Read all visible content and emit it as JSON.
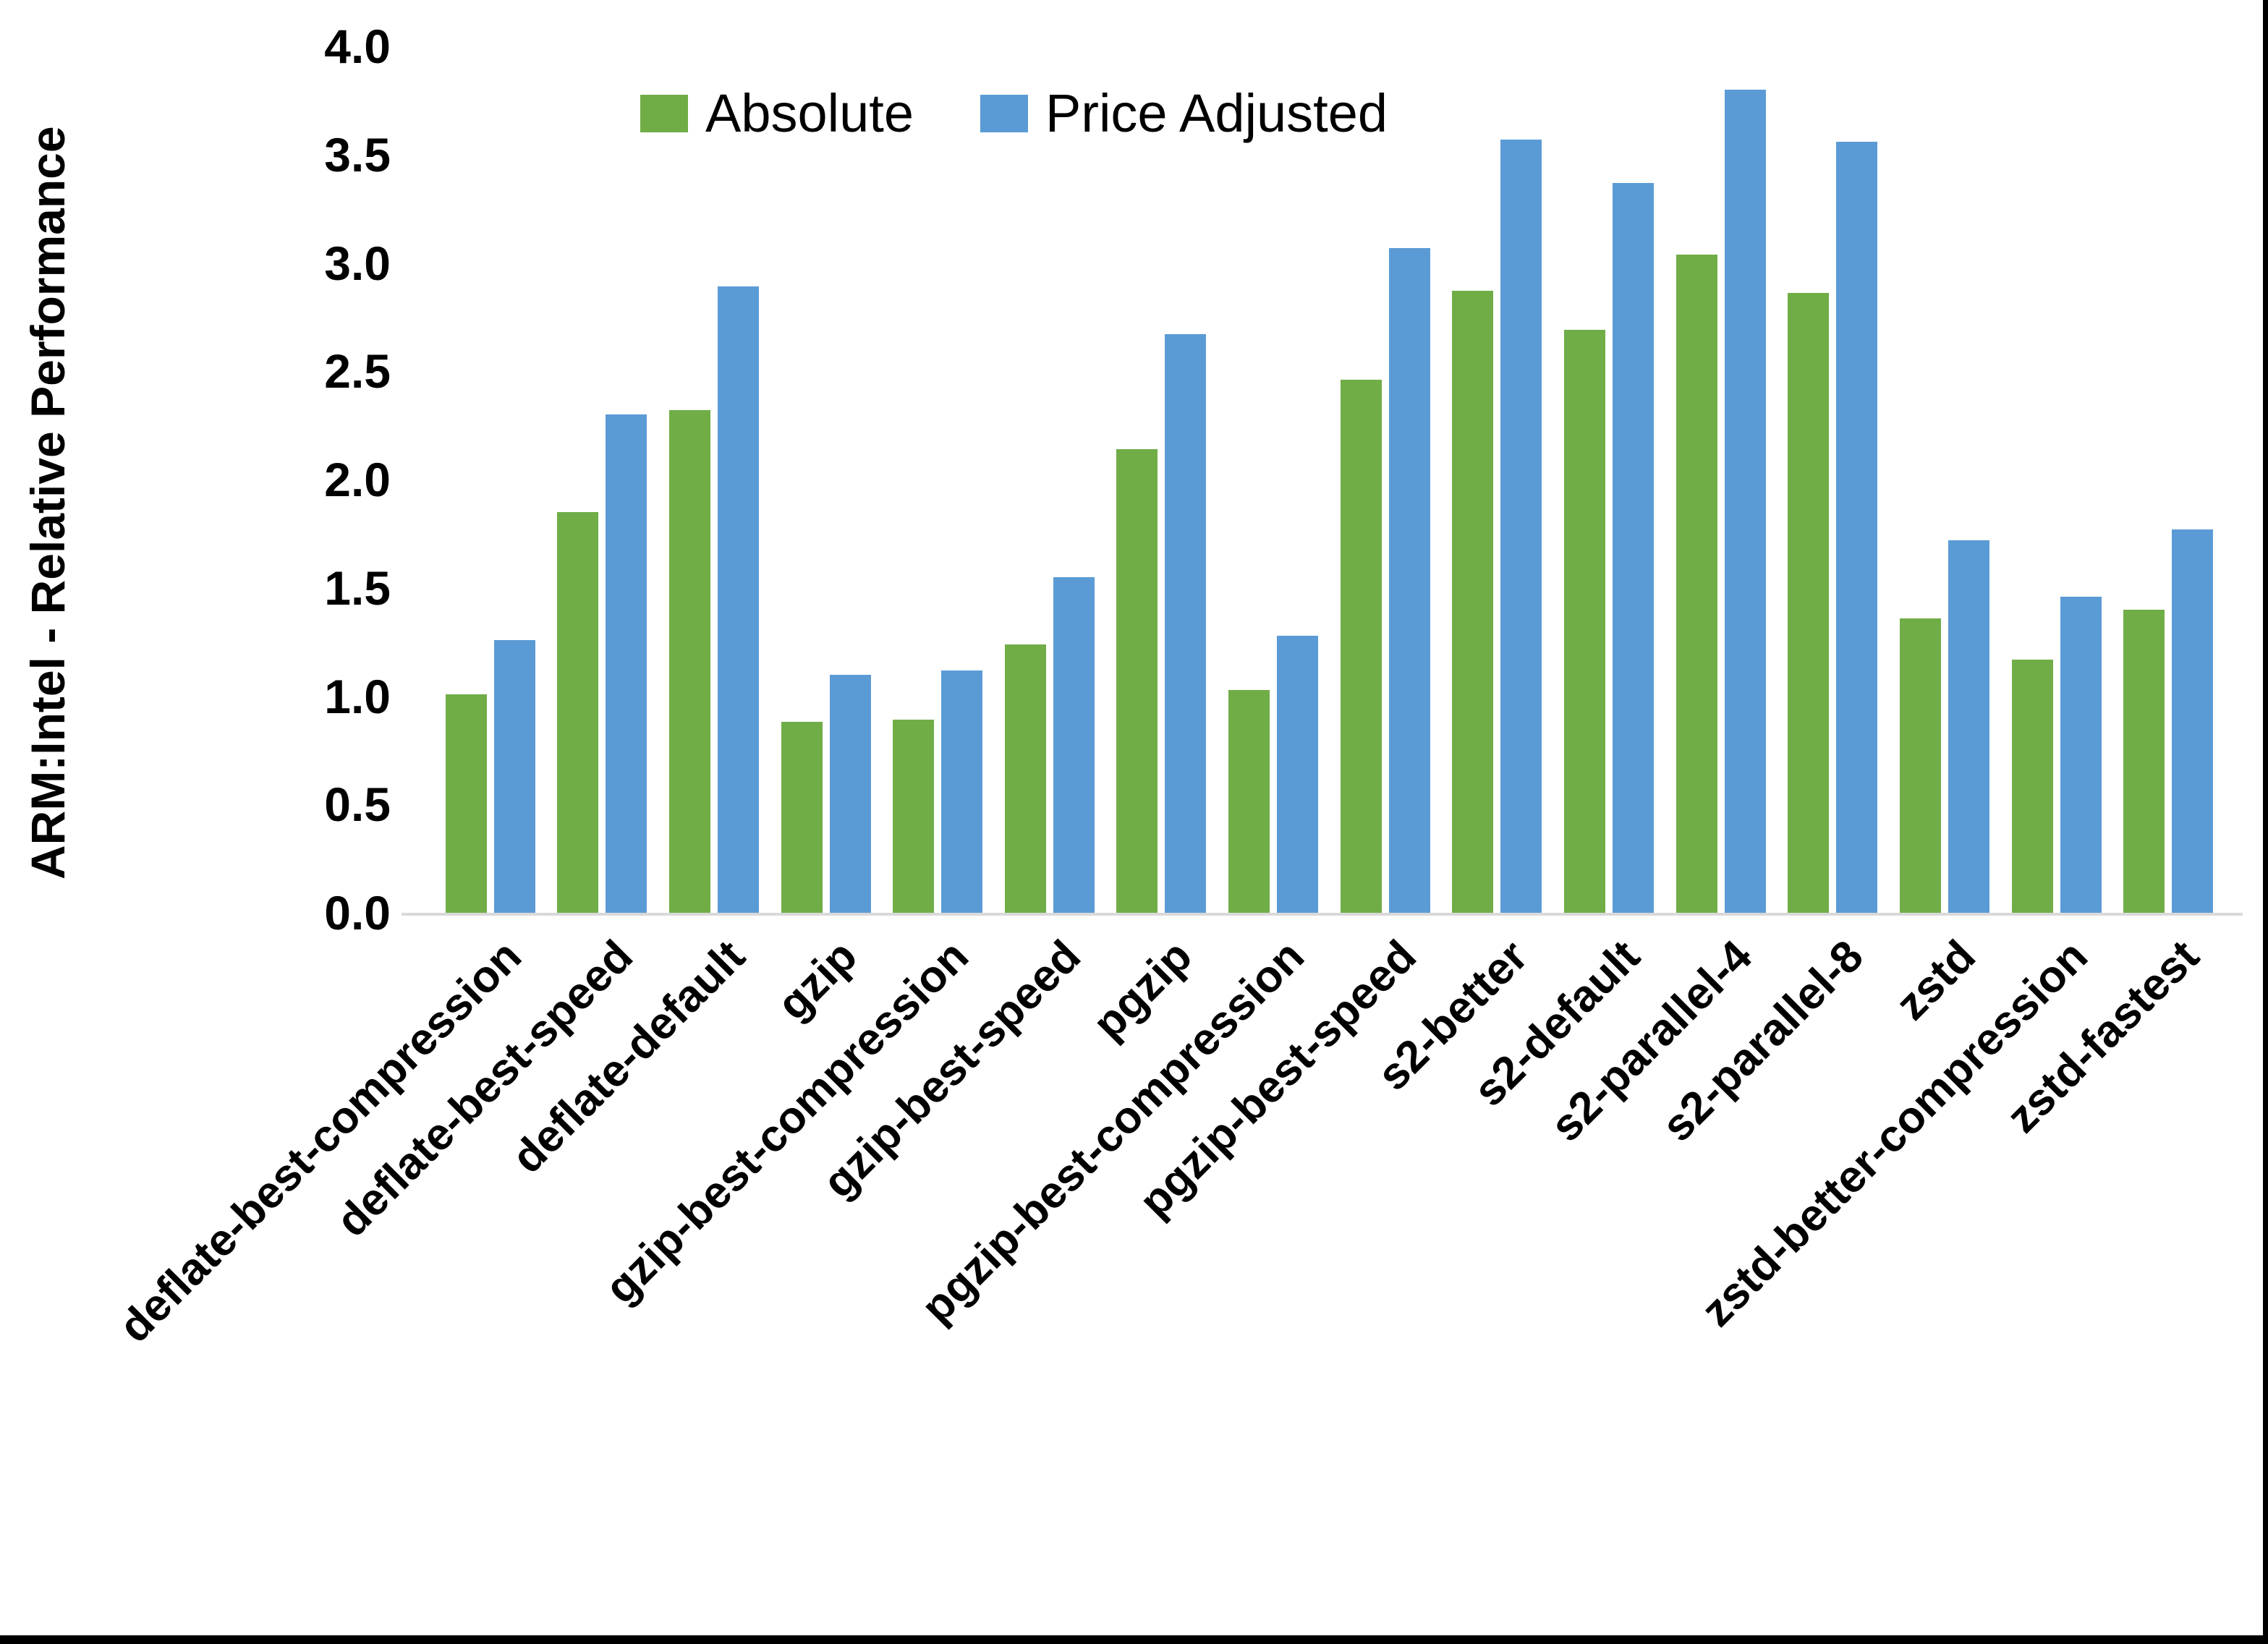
{
  "page": {
    "background": "#FFFFFF",
    "frame_border_color": "#000000"
  },
  "chart_data": {
    "type": "bar",
    "title": "",
    "xlabel": "",
    "ylabel": "ARM:Intel - Relative Performance",
    "ylim": [
      0.0,
      4.0
    ],
    "ytick_step": 0.5,
    "yticks": [
      "0.0",
      "0.5",
      "1.0",
      "1.5",
      "2.0",
      "2.5",
      "3.0",
      "3.5",
      "4.0"
    ],
    "grid": false,
    "legend_position": "top-center-inside",
    "axis_line_color": "#D9D9D9",
    "categories": [
      "deflate-best-compression",
      "deflate-best-speed",
      "deflate-default",
      "gzip",
      "gzip-best-compression",
      "gzip-best-speed",
      "pgzip",
      "pgzip-best-compression",
      "pgzip-best-speed",
      "s2-better",
      "s2-default",
      "s2-parallel-4",
      "s2-parallel-8",
      "zstd",
      "zstd-better-compression",
      "zstd-fastest"
    ],
    "series": [
      {
        "name": "Absolute",
        "color": "#70AD47",
        "values": [
          1.01,
          1.85,
          2.32,
          0.88,
          0.89,
          1.24,
          2.14,
          1.03,
          2.46,
          2.87,
          2.69,
          3.04,
          2.86,
          1.36,
          1.17,
          1.4
        ]
      },
      {
        "name": "Price Adjusted",
        "color": "#5B9BD5",
        "values": [
          1.26,
          2.3,
          2.89,
          1.1,
          1.12,
          1.55,
          2.67,
          1.28,
          3.07,
          3.57,
          3.37,
          3.8,
          3.56,
          1.72,
          1.46,
          1.77
        ]
      }
    ]
  }
}
